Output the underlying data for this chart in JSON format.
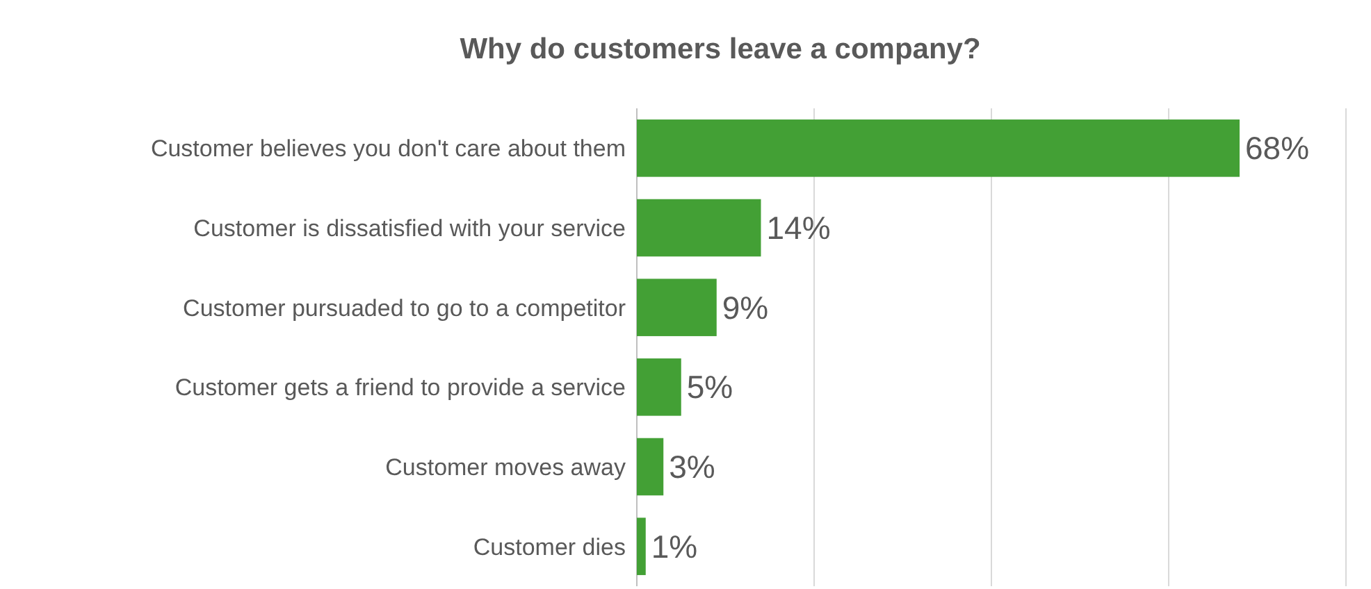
{
  "chart_data": {
    "type": "bar",
    "orientation": "horizontal",
    "title": "Why do customers leave a company?",
    "categories": [
      "Customer believes you don't care about them",
      "Customer is dissatisfied with your service",
      "Customer pursuaded to go to a competitor",
      "Customer gets a friend to provide a service",
      "Customer moves away",
      "Customer dies"
    ],
    "values": [
      68,
      14,
      9,
      5,
      3,
      1
    ],
    "value_labels": [
      "68%",
      "14%",
      "9%",
      "5%",
      "3%",
      "1%"
    ],
    "color": "#43a035",
    "xlim": [
      0,
      80
    ],
    "xticks": [
      {
        "value": 0,
        "label": null
      },
      {
        "value": 20,
        "label": null
      },
      {
        "value": 40,
        "label": null
      },
      {
        "value": 60,
        "label": null
      },
      {
        "value": 80,
        "label": null
      }
    ],
    "grid": "x",
    "tick_labels": "y"
  }
}
